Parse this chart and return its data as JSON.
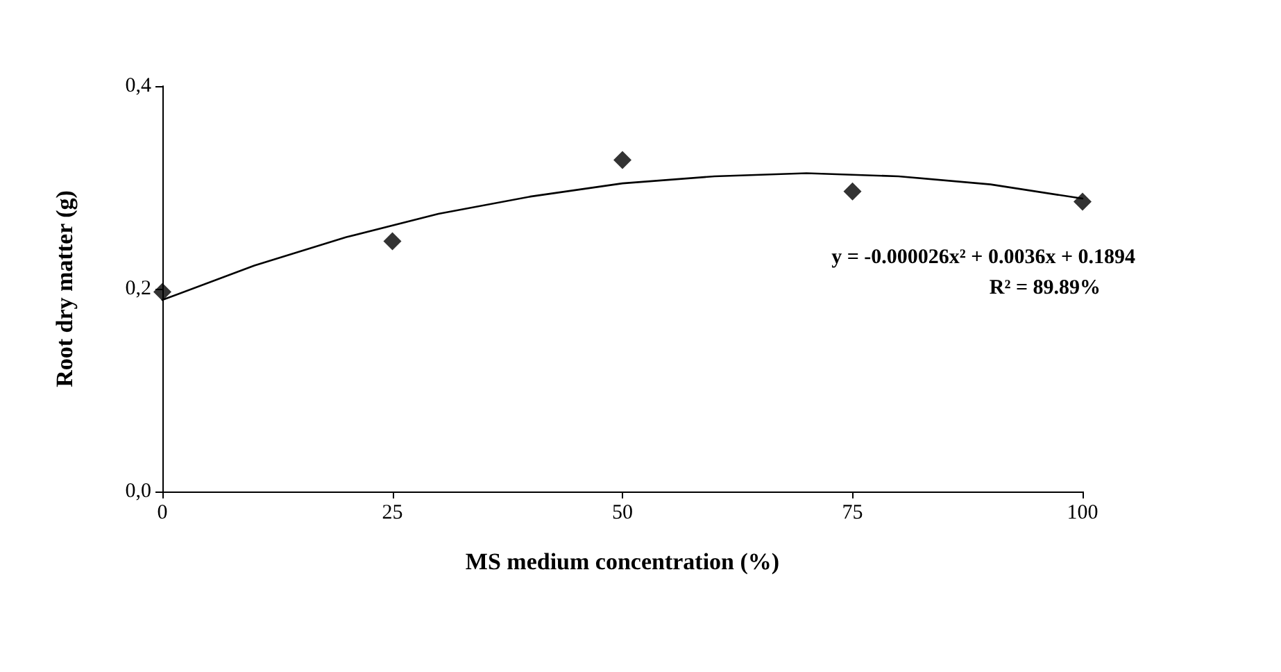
{
  "chart_data": {
    "type": "scatter",
    "xlabel": "MS medium concentration (%)",
    "ylabel": "Root dry matter (g)",
    "xlim": [
      0,
      100
    ],
    "xticks": [
      0,
      25,
      50,
      75,
      100
    ],
    "ylim": [
      0,
      0.4
    ],
    "yticks": [
      {
        "value": 0,
        "label": "0,0"
      },
      {
        "value": 0.2,
        "label": "0,2"
      },
      {
        "value": 0.4,
        "label": "0,4"
      }
    ],
    "marker": "diamond",
    "series": [
      {
        "type": "scatter",
        "color": "#000000",
        "x": [
          0,
          25,
          50,
          75,
          100
        ],
        "values": [
          0.197,
          0.247,
          0.327,
          0.296,
          0.286
        ]
      },
      {
        "type": "line",
        "color": "#000000",
        "marker": "none",
        "x": [
          0,
          10,
          20,
          30,
          40,
          50,
          60,
          70,
          80,
          90,
          100
        ],
        "values": [
          0.189,
          0.223,
          0.251,
          0.274,
          0.291,
          0.304,
          0.311,
          0.314,
          0.311,
          0.303,
          0.289
        ]
      }
    ],
    "annotations": [
      "y = -0.000026x² + 0.0036x + 0.1894",
      "R² = 89.89%"
    ]
  }
}
